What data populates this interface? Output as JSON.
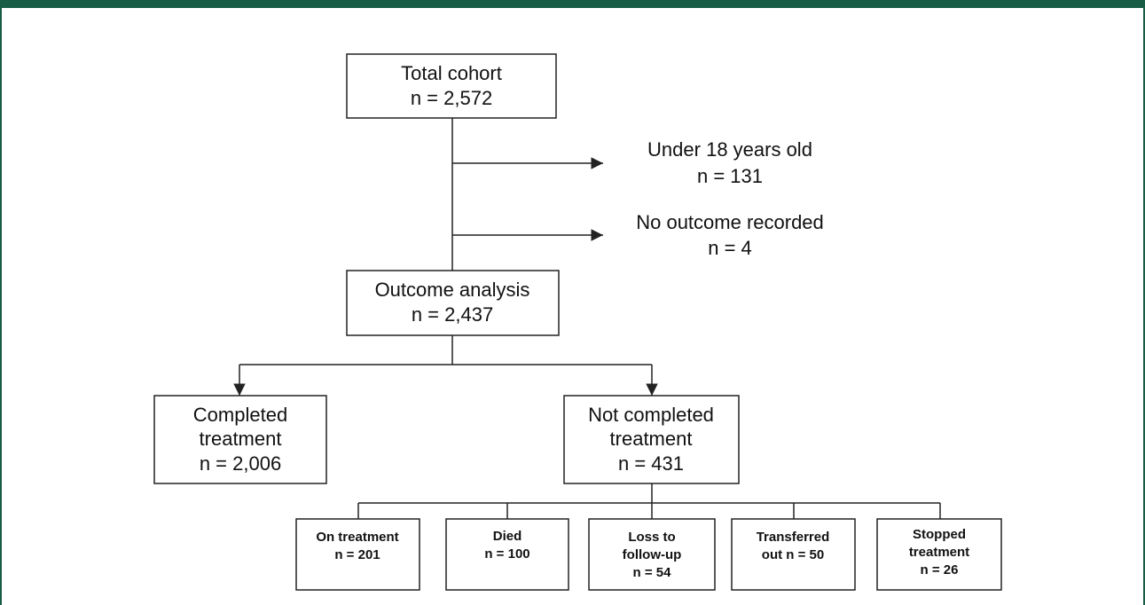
{
  "nodes": [
    {
      "lines": [
        "Total cohort",
        "n = 2,572"
      ]
    },
    {
      "lines": [
        "Under 18 years old",
        "n = 131"
      ]
    },
    {
      "lines": [
        "No outcome recorded",
        "n = 4"
      ]
    },
    {
      "lines": [
        "Outcome analysis",
        "n = 2,437"
      ]
    },
    {
      "lines": [
        "Completed",
        "treatment",
        "n = 2,006"
      ]
    },
    {
      "lines": [
        "Not completed",
        "treatment",
        "n = 431"
      ]
    },
    {
      "lines": [
        "On treatment",
        "n = 201"
      ]
    },
    {
      "lines": [
        "Died",
        "n = 100"
      ]
    },
    {
      "lines": [
        "Loss to",
        "follow-up",
        "n = 54"
      ]
    },
    {
      "lines": [
        "Transferred",
        "out n = 50"
      ]
    },
    {
      "lines": [
        "Stopped",
        "treatment",
        "n = 26"
      ]
    }
  ]
}
